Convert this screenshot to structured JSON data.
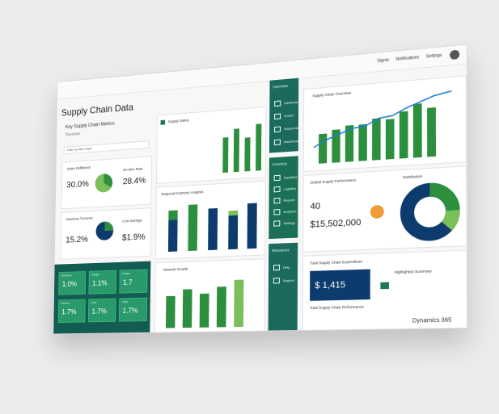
{
  "header": {
    "links": [
      "Signin",
      "Notifications",
      "Settings"
    ]
  },
  "page": {
    "title": "Supply Chain Data",
    "subtitle": "Key Supply Chain Metrics",
    "subtitle2": "Overview",
    "filter": "Filter by date range"
  },
  "kpis": {
    "left_top_a": "30.0%",
    "left_top_b": "28.4%",
    "left_bottom_a": "15.2%",
    "left_bottom_b": "$1.9%",
    "left_top_label": "Order Fulfillment",
    "left_top_label_b": "On-time Rate",
    "left_bottom_label": "Inventory Turnover",
    "left_bottom_label_b": "Cost Savings"
  },
  "green_tiles": [
    {
      "label": "Revenue",
      "value": "1.0%"
    },
    {
      "label": "Margin",
      "value": "1.1%"
    },
    {
      "label": "Orders",
      "value": "1.7"
    },
    {
      "label": "Returns",
      "value": "1.7%"
    },
    {
      "label": "Cost",
      "value": "1.7%"
    },
    {
      "label": "Units",
      "value": "1.7%"
    }
  ],
  "mid_top": {
    "title": "Supply Status"
  },
  "mid_middle": {
    "title": "Regional Inventory Analysis"
  },
  "mid_bottom": {
    "title": "Network Growth"
  },
  "nav": {
    "top_title": "Overview",
    "items": [
      "Dashboard",
      "Orders",
      "Shipments",
      "Warehouse"
    ],
    "mid_title": "Inventory",
    "mid_items": [
      "Suppliers",
      "Logistics",
      "Reports",
      "Analytics",
      "Settings"
    ],
    "bottom_title": "Resources",
    "bottom_items": [
      "Help",
      "Support"
    ]
  },
  "right_top": {
    "title": "Supply Chain Overview"
  },
  "right_mid": {
    "title": "Global Supply Performance",
    "value_a": "40",
    "value_b": "$15,502,000",
    "tag": "Distribution"
  },
  "right_bottom": {
    "title": "Total Supply Chain Expenditure",
    "value": "$ 1,415",
    "note": "Total Supply Chain Performance",
    "side": "Highlighted Summary"
  },
  "brand": "Dynamics 365",
  "colors": {
    "green": "#1f8a4c",
    "teal": "#1c6a5e",
    "navy": "#0e3b6e",
    "light_green": "#7bbf5a"
  }
}
